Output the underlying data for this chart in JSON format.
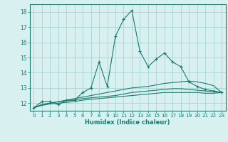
{
  "xlabel": "Humidex (Indice chaleur)",
  "x": [
    0,
    1,
    2,
    3,
    4,
    5,
    6,
    7,
    8,
    9,
    10,
    11,
    12,
    13,
    14,
    15,
    16,
    17,
    18,
    19,
    20,
    21,
    22,
    23
  ],
  "line1": [
    11.7,
    12.1,
    12.1,
    11.9,
    12.2,
    12.2,
    12.7,
    13.0,
    14.7,
    13.1,
    16.4,
    17.5,
    18.1,
    15.4,
    14.4,
    14.9,
    15.3,
    14.7,
    14.4,
    13.4,
    13.1,
    12.9,
    12.8,
    12.7
  ],
  "line2": [
    11.7,
    11.9,
    12.0,
    12.1,
    12.2,
    12.3,
    12.4,
    12.5,
    12.6,
    12.7,
    12.8,
    12.9,
    13.0,
    13.05,
    13.1,
    13.2,
    13.3,
    13.35,
    13.4,
    13.45,
    13.4,
    13.3,
    13.15,
    12.7
  ],
  "line3": [
    11.7,
    11.9,
    12.0,
    12.1,
    12.15,
    12.2,
    12.3,
    12.35,
    12.4,
    12.45,
    12.5,
    12.6,
    12.7,
    12.75,
    12.8,
    12.85,
    12.9,
    12.95,
    12.95,
    12.9,
    12.85,
    12.8,
    12.75,
    12.7
  ],
  "line4": [
    11.7,
    11.85,
    11.95,
    12.0,
    12.05,
    12.1,
    12.2,
    12.25,
    12.3,
    12.35,
    12.4,
    12.45,
    12.5,
    12.55,
    12.6,
    12.65,
    12.7,
    12.7,
    12.7,
    12.7,
    12.7,
    12.65,
    12.65,
    12.7
  ],
  "color": "#1a7a6e",
  "bg_color": "#d8f0f0",
  "grid_color": "#b0d8d8",
  "ylim": [
    11.5,
    18.5
  ],
  "xlim": [
    -0.5,
    23.5
  ],
  "yticks": [
    12,
    13,
    14,
    15,
    16,
    17,
    18
  ],
  "xticks": [
    0,
    1,
    2,
    3,
    4,
    5,
    6,
    7,
    8,
    9,
    10,
    11,
    12,
    13,
    14,
    15,
    16,
    17,
    18,
    19,
    20,
    21,
    22,
    23
  ]
}
